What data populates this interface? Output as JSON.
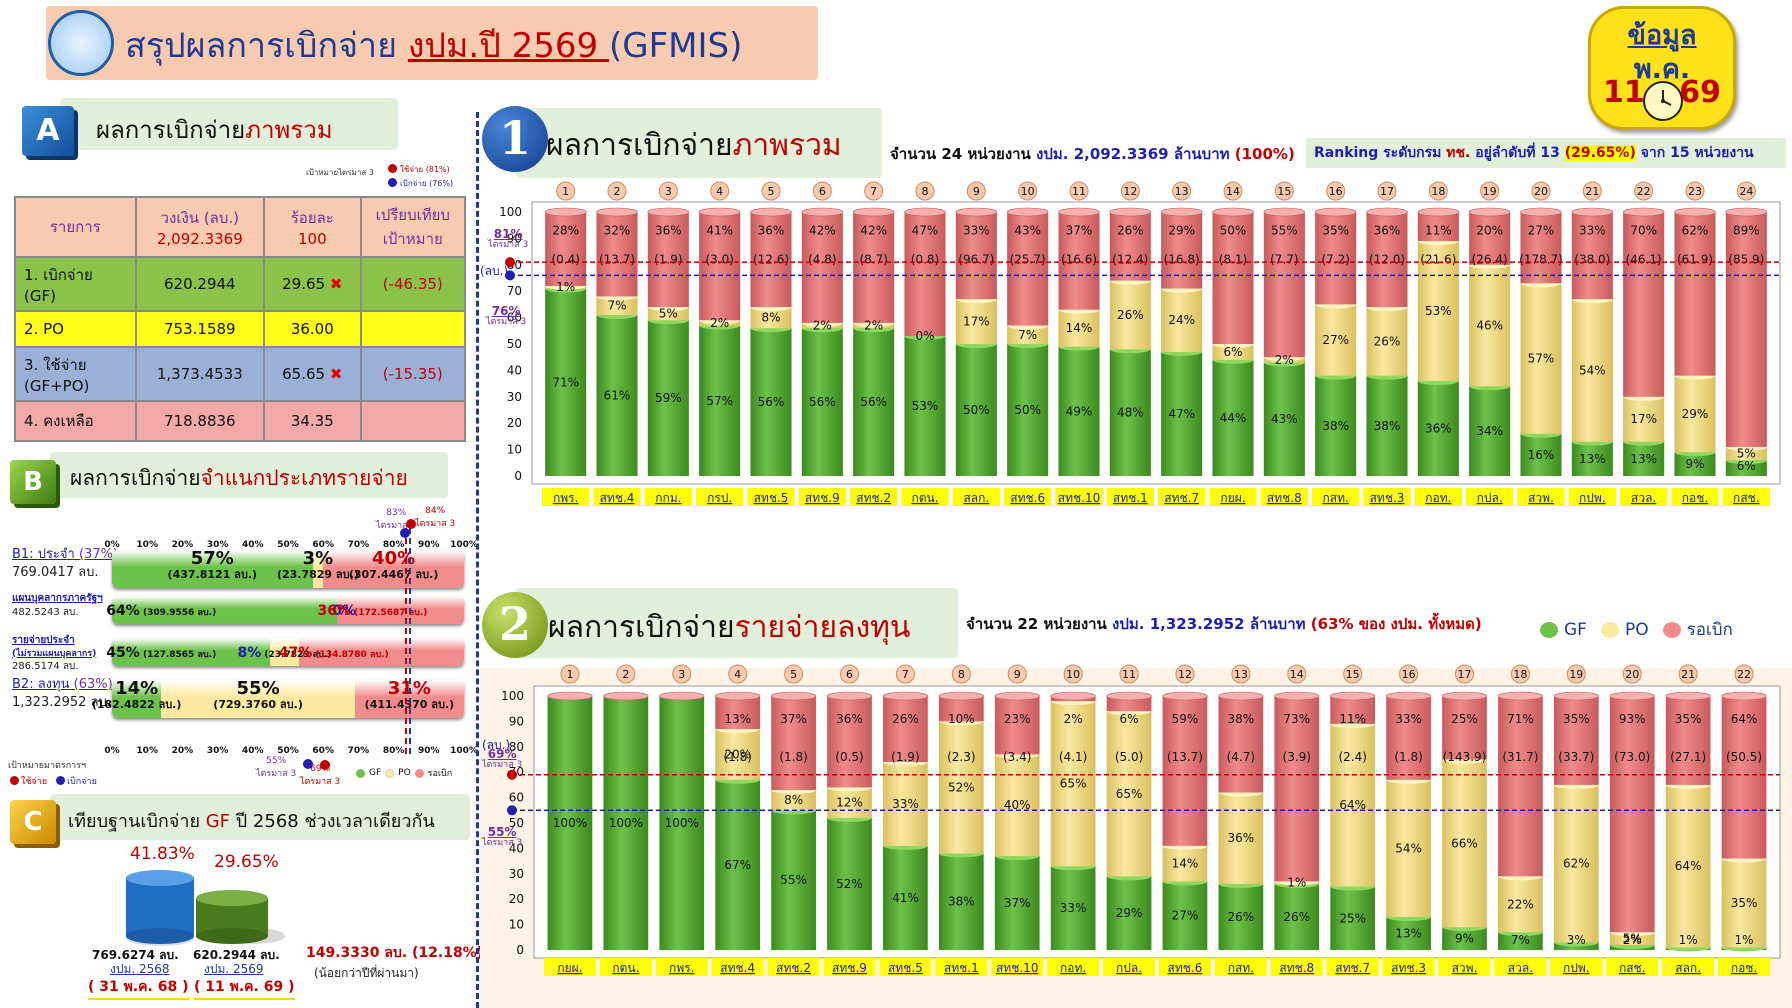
{
  "header": {
    "title_prefix": "สรุปผลการเบิกจ่าย ",
    "title_underlined": "งปม.ปี 2569 ",
    "title_suffix": "(GFMIS)",
    "data_label": "ข้อมูล",
    "month": "พ.ค.",
    "day": "11",
    "year": "69"
  },
  "section_a": {
    "letter": "A",
    "label_prefix": "ผลการเบิกจ่าย",
    "label_highlight": "ภาพรวม",
    "legend_target": "เป้าหมายไตรมาส 3",
    "legend_spend": "ใช้จ่าย (81%)",
    "legend_disburse": "เบิกจ่าย (76%)",
    "headers": [
      "รายการ",
      "วงเงิน (ลบ.)",
      "ร้อยละ",
      "เปรียบเทียบ"
    ],
    "headers2": [
      "",
      "2,092.3369",
      "100",
      "เป้าหมาย"
    ],
    "rows": [
      {
        "label": "1. เบิกจ่าย\n(GF)",
        "amount": "620.2944",
        "pct": "29.65",
        "mark": "✖",
        "compare": "(-46.35)"
      },
      {
        "label": "2. PO",
        "amount": "753.1589",
        "pct": "36.00",
        "mark": "",
        "compare": ""
      },
      {
        "label": "3. ใช้จ่าย\n(GF+PO)",
        "amount": "1,373.4533",
        "pct": "65.65",
        "mark": "✖",
        "compare": "(-15.35)"
      },
      {
        "label": "4. คงเหลือ",
        "amount": "718.8836",
        "pct": "34.35",
        "mark": "",
        "compare": ""
      }
    ]
  },
  "section_b": {
    "letter": "B",
    "label_prefix": "ผลการเบิกจ่าย",
    "label_highlight": "จำแนกประเภทรายจ่าย",
    "axis_ticks": [
      "0%",
      "10%",
      "20%",
      "30%",
      "40%",
      "50%",
      "60%",
      "70%",
      "80%",
      "90%",
      "100%"
    ],
    "target_top_a": "83%",
    "target_top_a_sub": "ไตรมาส 3",
    "target_top_b": "84%",
    "target_top_b_sub": "ไตรมาส 3",
    "target_bot_a": "55%",
    "target_bot_a_sub": "ไตรมาส 3",
    "target_bot_b": "69%",
    "target_bot_b_sub": "ไตรมาส 3",
    "legend_target": "เป้าหมายมาตรการฯ",
    "legend_spend": "ใช้จ่าย",
    "legend_disburse": "เบิกจ่าย",
    "legend_gf": "GF",
    "legend_po": "PO",
    "legend_wait": "รอเบิก",
    "rows": [
      {
        "label1": "B1: ประจำ",
        "label1b": "(37%)",
        "label2": "769.0417 ลบ.",
        "gf_pct": "57%",
        "gf_amt": "(437.8121 ลบ.)",
        "po_pct": "3%",
        "po_amt": "(23.7829 ลบ.)",
        "wait_pct": "40%",
        "wait_amt": "(307.4467 ลบ.)",
        "gf": 57,
        "po": 3,
        "wait": 40,
        "big": true
      },
      {
        "label1": "แผนบุคลากรภาครัฐฯ",
        "label1b": "",
        "label2": "482.5243 ลบ.",
        "gf_pct": "64%",
        "gf_amt": "(309.9556 ลบ.)",
        "po_pct": "0%",
        "po_amt": "",
        "wait_pct": "36%",
        "wait_amt": "(172.5687 ลบ.)",
        "gf": 64,
        "po": 0,
        "wait": 36,
        "big": false
      },
      {
        "label1": "รายจ่ายประจำ",
        "label1b": "(ไม่รวมแผนบุคลากร)",
        "label2": "286.5174 ลบ.",
        "gf_pct": "45%",
        "gf_amt": "(127.8565 ลบ.)",
        "po_pct": "8%",
        "po_amt": "(23.7829 ลบ.)",
        "wait_pct": "47%",
        "wait_amt": "(134.8780 ลบ.)",
        "gf": 45,
        "po": 8,
        "wait": 47,
        "big": false
      },
      {
        "label1": "B2: ลงทุน",
        "label1b": "(63%)",
        "label2": "1,323.2952 ลบ.",
        "gf_pct": "14%",
        "gf_amt": "(182.4822 ลบ.)",
        "po_pct": "55%",
        "po_amt": "(729.3760 ลบ.)",
        "wait_pct": "31%",
        "wait_amt": "(411.4370 ลบ.)",
        "gf": 14,
        "po": 55,
        "wait": 31,
        "big": true
      }
    ]
  },
  "section_c": {
    "letter": "C",
    "label_prefix": "เทียบฐานเบิกจ่าย ",
    "label_gf": "GF",
    "label_suffix": " ปี 2568 ช่วงเวลาเดียวกัน",
    "prev_pct": "41.83%",
    "prev_amt": "769.6274 ลบ.",
    "prev_year": "งปม. 2568",
    "prev_date": "( 31 พ.ค. 68 )",
    "cur_pct": "29.65%",
    "cur_amt": "620.2944 ลบ.",
    "cur_year": "งปม. 2569",
    "cur_date": "( 11 พ.ค. 69 )",
    "diff": "149.3330 ลบ. (12.18%)",
    "diff_note": "(น้อยกว่าปีที่ผ่านมา)"
  },
  "chart1": {
    "number": "1",
    "label_prefix": "ผลการเบิกจ่าย",
    "label_highlight": "ภาพรวม",
    "info_a": "จำนวน 24 หน่วยงาน ",
    "info_b": "งปม. 2,092.3369 ล้านบาท",
    "info_c": " (100%)",
    "ranking_a": "Ranking ระดับกรม ",
    "ranking_b": "ทช.",
    "ranking_c": " อยู่ลำดับที่ 13 ",
    "ranking_d": "(29.65%)",
    "ranking_e": " จาก 15 หน่วยงาน",
    "unit": "(ลบ.)",
    "target1": "81%",
    "target1_sub": "ไตรมาส 3",
    "target2": "76%",
    "target2_sub": "ไตรมาส 3"
  },
  "chart2": {
    "number": "2",
    "label_prefix": "ผลการเบิกจ่าย",
    "label_highlight": "รายจ่ายลงทุน",
    "info_a": "จำนวน 22 หน่วยงาน ",
    "info_b": "งปม. 1,323.2952 ล้านบาท",
    "info_c": " (63% ของ งปม. ทั้งหมด)",
    "legend_gf": "GF",
    "legend_po": "PO",
    "legend_wait": "รอเบิก",
    "unit": "(ลบ.)",
    "target1": "69%",
    "target1_sub": "ไตรมาส 3",
    "target2": "55%",
    "target2_sub": "ไตรมาส 3"
  },
  "chart_data": [
    {
      "type": "bar",
      "stacked": true,
      "ylim": [
        0,
        100
      ],
      "yticks": [
        0,
        10,
        20,
        30,
        40,
        50,
        60,
        70,
        80,
        90,
        100
      ],
      "targets": [
        81,
        76
      ],
      "categories": [
        "กพร.",
        "สทช.4",
        "กกม.",
        "กรป.",
        "สทช.5",
        "สทช.9",
        "สทช.2",
        "กตน.",
        "สลก.",
        "สทช.6",
        "สทช.10",
        "สทช.1",
        "สทช.7",
        "กยผ.",
        "สทช.8",
        "กสท.",
        "สทช.3",
        "กอท.",
        "กปล.",
        "สวพ.",
        "กปพ.",
        "สวล.",
        "กอช.",
        "กสช."
      ],
      "ranks": [
        "1",
        "2",
        "3",
        "4",
        "5",
        "6",
        "7",
        "8",
        "9",
        "10",
        "11",
        "12",
        "13",
        "14",
        "15",
        "16",
        "17",
        "18",
        "19",
        "20",
        "21",
        "22",
        "23",
        "24"
      ],
      "series": [
        {
          "name": "GF",
          "values": [
            71,
            61,
            59,
            57,
            56,
            56,
            56,
            53,
            50,
            50,
            49,
            48,
            47,
            44,
            43,
            38,
            38,
            36,
            34,
            16,
            13,
            13,
            9,
            6
          ]
        },
        {
          "name": "PO",
          "values": [
            1,
            7,
            5,
            2,
            8,
            2,
            2,
            0,
            17,
            7,
            14,
            26,
            24,
            6,
            2,
            27,
            26,
            53,
            46,
            57,
            54,
            17,
            29,
            5
          ]
        },
        {
          "name": "รอเบิก",
          "values": [
            28,
            32,
            36,
            41,
            36,
            42,
            42,
            47,
            33,
            43,
            37,
            26,
            29,
            50,
            55,
            35,
            36,
            11,
            20,
            27,
            33,
            70,
            62,
            89
          ]
        }
      ],
      "gf_labels": [
        "71%",
        "61%",
        "59%",
        "57%",
        "56%",
        "56%",
        "56%",
        "53%",
        "50%",
        "50%",
        "49%",
        "48%",
        "47%",
        "44%",
        "43%",
        "38%",
        "38%",
        "36%",
        "34%",
        "16%",
        "13%",
        "13%",
        "9%",
        "6%"
      ],
      "po_labels": [
        "1%",
        "7%",
        "5%",
        "2%",
        "8%",
        "2%",
        "2%",
        "0%",
        "17%",
        "7%",
        "14%",
        "26%",
        "24%",
        "6%",
        "2%",
        "27%",
        "26%",
        "53%",
        "46%",
        "57%",
        "54%",
        "17%",
        "29%",
        "5%"
      ],
      "wait_labels": [
        "28%",
        "32%",
        "36%",
        "41%",
        "36%",
        "42%",
        "42%",
        "47%",
        "33%",
        "43%",
        "37%",
        "26%",
        "29%",
        "50%",
        "55%",
        "35%",
        "36%",
        "11%",
        "20%",
        "27%",
        "33%",
        "70%",
        "62%",
        "89%"
      ],
      "wait_amounts": [
        "(0.4)",
        "(13.7)",
        "(1.9)",
        "(3.0)",
        "(12.6)",
        "(4.8)",
        "(8.7)",
        "(0.8)",
        "(96.7)",
        "(25.7)",
        "(16.6)",
        "(12.4)",
        "(16.8)",
        "(8.1)",
        "(7.7)",
        "(7.2)",
        "(12.0)",
        "(21.6)",
        "(26.4)",
        "(178.7)",
        "(38.0)",
        "(46.1)",
        "(61.9)",
        "(85.9)"
      ]
    },
    {
      "type": "bar",
      "stacked": true,
      "ylim": [
        0,
        100
      ],
      "yticks": [
        0,
        10,
        20,
        30,
        40,
        50,
        60,
        70,
        80,
        90,
        100
      ],
      "targets": [
        69,
        55
      ],
      "categories": [
        "กยผ.",
        "กตน.",
        "กพร.",
        "สทช.4",
        "สทช.2",
        "สทช.9",
        "สทช.5",
        "สทช.1",
        "สทช.10",
        "กอท.",
        "กปล.",
        "สทช.6",
        "กสท.",
        "สทช.8",
        "สทช.7",
        "สทช.3",
        "สวพ.",
        "สวล.",
        "กปพ.",
        "กสช.",
        "สลก.",
        "กอช."
      ],
      "ranks": [
        "1",
        "2",
        "3",
        "4",
        "5",
        "6",
        "7",
        "8",
        "9",
        "10",
        "11",
        "12",
        "13",
        "14",
        "15",
        "16",
        "17",
        "18",
        "19",
        "20",
        "21",
        "22"
      ],
      "series": [
        {
          "name": "GF",
          "values": [
            100,
            100,
            100,
            67,
            55,
            52,
            41,
            38,
            37,
            33,
            29,
            27,
            26,
            26,
            25,
            13,
            9,
            7,
            3,
            2,
            1,
            1
          ]
        },
        {
          "name": "PO",
          "values": [
            0,
            0,
            0,
            20,
            8,
            12,
            33,
            52,
            40,
            65,
            65,
            14,
            36,
            1,
            64,
            54,
            66,
            22,
            62,
            5,
            64,
            35
          ]
        },
        {
          "name": "รอเบิก",
          "values": [
            0,
            0,
            0,
            13,
            37,
            36,
            26,
            10,
            23,
            2,
            6,
            59,
            38,
            73,
            11,
            33,
            25,
            71,
            35,
            93,
            35,
            64
          ]
        }
      ],
      "gf_labels": [
        "100%",
        "100%",
        "100%",
        "67%",
        "55%",
        "52%",
        "41%",
        "38%",
        "37%",
        "33%",
        "29%",
        "27%",
        "26%",
        "26%",
        "25%",
        "13%",
        "9%",
        "7%",
        "3%",
        "2%",
        "1%",
        "1%"
      ],
      "po_labels": [
        "",
        "",
        "",
        "20%",
        "8%",
        "12%",
        "33%",
        "52%",
        "40%",
        "65%",
        "65%",
        "14%",
        "36%",
        "1%",
        "64%",
        "54%",
        "66%",
        "22%",
        "62%",
        "5%",
        "64%",
        "35%"
      ],
      "wait_labels": [
        "",
        "",
        "",
        "13%",
        "37%",
        "36%",
        "26%",
        "10%",
        "23%",
        "2%",
        "6%",
        "59%",
        "38%",
        "73%",
        "11%",
        "33%",
        "25%",
        "71%",
        "35%",
        "93%",
        "35%",
        "64%"
      ],
      "wait_amounts": [
        "",
        "",
        "",
        "(1.8)",
        "(1.8)",
        "(0.5)",
        "(1.9)",
        "(2.3)",
        "(3.4)",
        "(4.1)",
        "(5.0)",
        "(13.7)",
        "(4.7)",
        "(3.9)",
        "(2.4)",
        "(1.8)",
        "(143.9)",
        "(31.7)",
        "(33.7)",
        "(73.0)",
        "(27.1)",
        "(50.5)"
      ]
    }
  ],
  "colors": {
    "gf": "#6cc24a",
    "po": "#fbe9a0",
    "wait": "#f08c8c",
    "target_red": "#c00000",
    "target_blue": "#1f1fb0",
    "title_blue": "#1f3a93"
  }
}
